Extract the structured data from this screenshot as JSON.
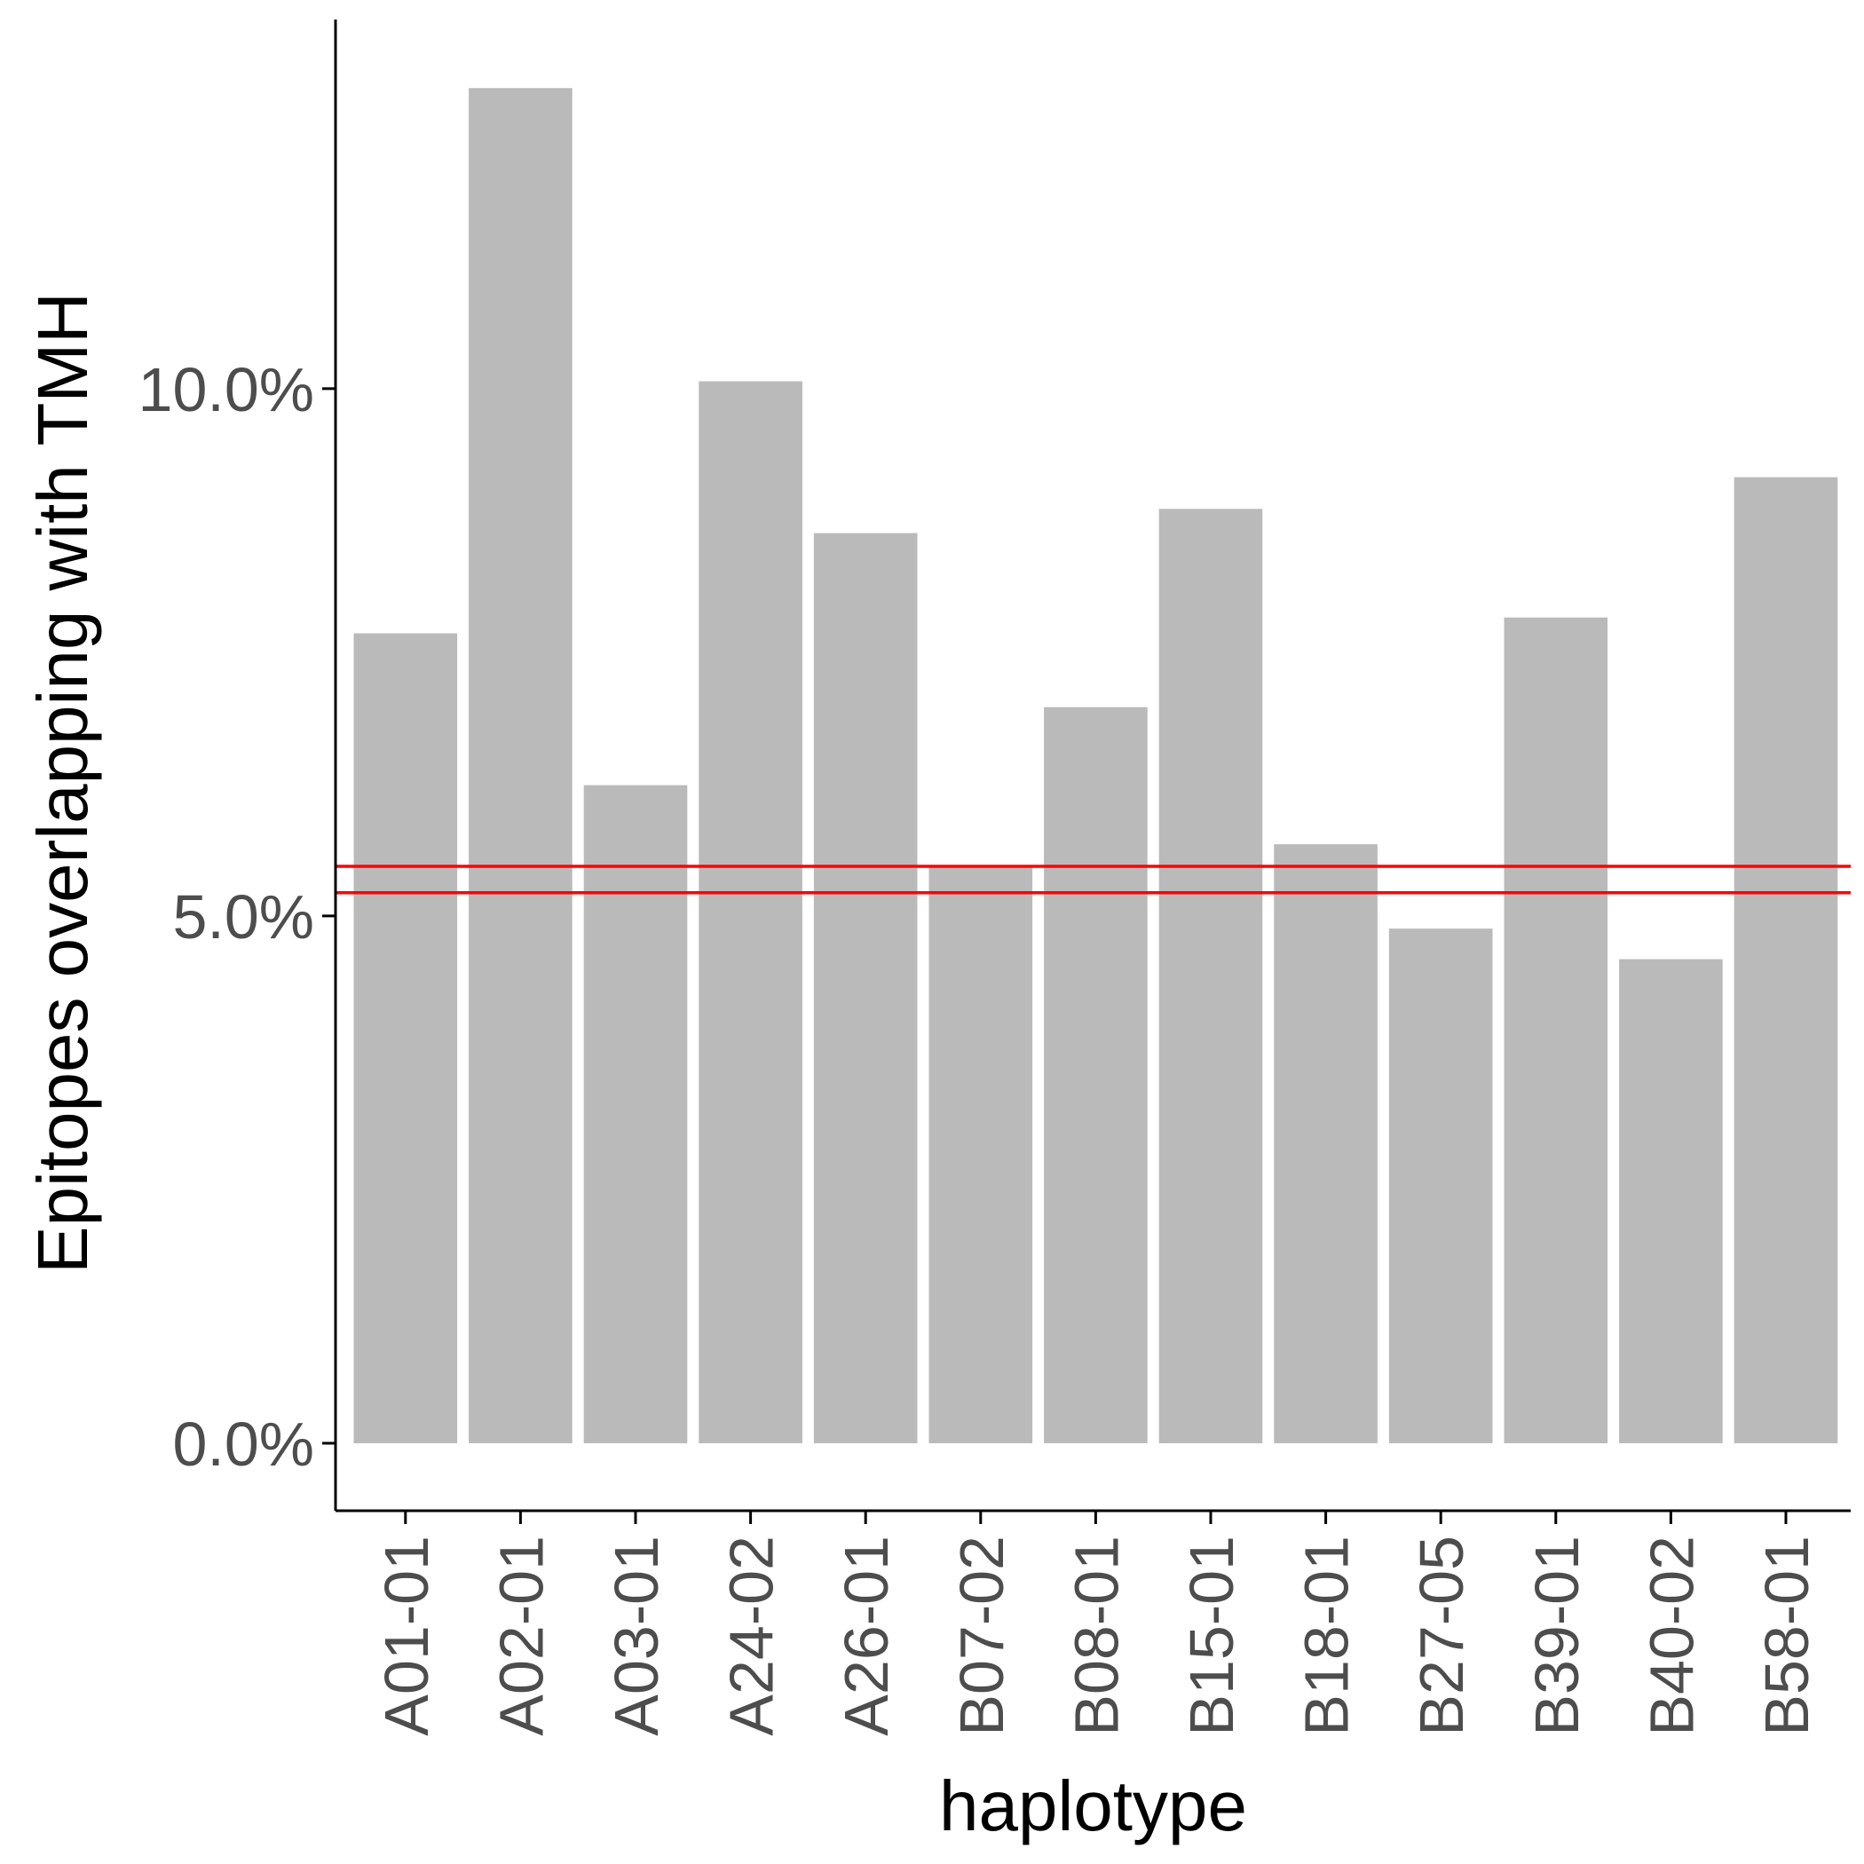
{
  "chart_data": {
    "type": "bar",
    "xlabel": "haplotype",
    "ylabel": "Epitopes overlapping with TMH",
    "categories": [
      "A01-01",
      "A02-01",
      "A03-01",
      "A24-02",
      "A26-01",
      "B07-02",
      "B08-01",
      "B15-01",
      "B18-01",
      "B27-05",
      "B39-01",
      "B40-02",
      "B58-01"
    ],
    "values": [
      7.68,
      12.85,
      6.24,
      10.07,
      8.63,
      5.47,
      6.98,
      8.86,
      5.68,
      4.88,
      7.83,
      4.59,
      9.16
    ],
    "y_ticks": [
      0,
      5,
      10
    ],
    "y_tick_labels": [
      "0.0%",
      "5.0%",
      "10.0%"
    ],
    "ylim": [
      -0.64,
      13.5
    ],
    "reference_lines": [
      5.47,
      5.22
    ],
    "grid": false,
    "legend": "none",
    "colors": {
      "bar": "#bababa",
      "reference_line": "#ff0000",
      "axis": "#000000",
      "tick_label": "#4d4d4d"
    }
  }
}
